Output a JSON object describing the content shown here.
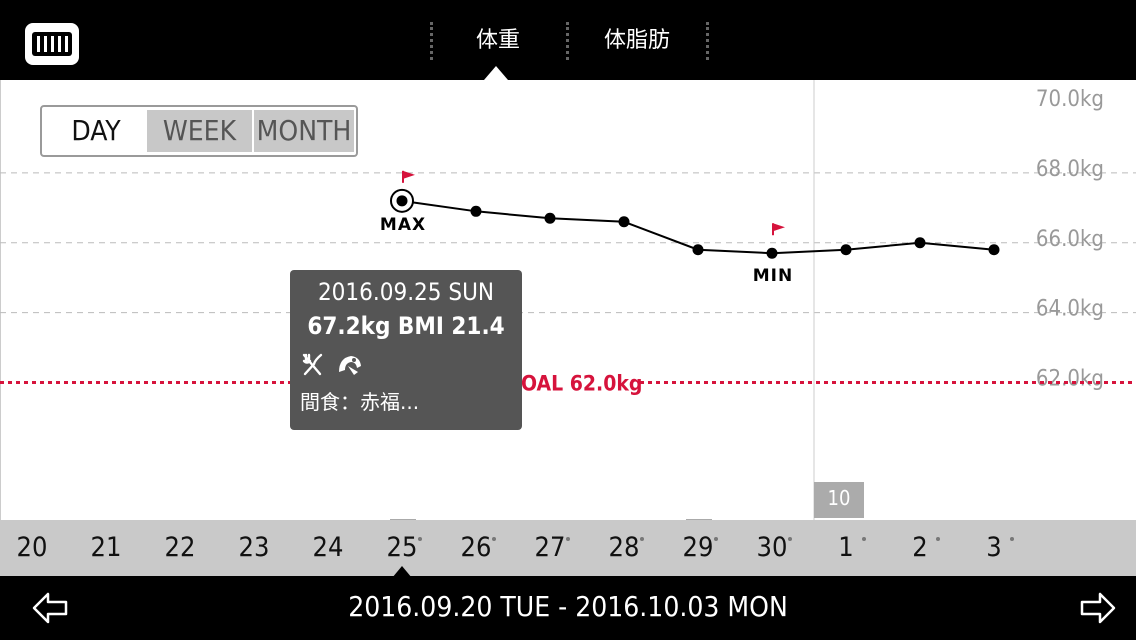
{
  "header": {
    "tabs": [
      {
        "label": "体重",
        "active": true
      },
      {
        "label": "体脂肪",
        "active": false
      }
    ]
  },
  "range_selector": {
    "options": [
      "DAY",
      "WEEK",
      "MONTH"
    ],
    "selected": "DAY"
  },
  "chart_data": {
    "type": "line",
    "x": [
      "2016-09-25",
      "2016-09-26",
      "2016-09-27",
      "2016-09-28",
      "2016-09-29",
      "2016-09-30",
      "2016-10-01",
      "2016-10-02",
      "2016-10-03"
    ],
    "values": [
      67.2,
      66.9,
      66.7,
      66.6,
      65.8,
      65.7,
      65.8,
      66.0,
      65.8
    ],
    "y_tick_labels": [
      "70.0kg",
      "68.0kg",
      "66.0kg",
      "64.0kg",
      "62.0kg"
    ],
    "y_ticks": [
      70,
      68,
      66,
      64,
      62
    ],
    "ylim": [
      61.4,
      70.5
    ],
    "grid": true,
    "goal": {
      "label": "GOAL 62.0kg",
      "value": 62.0,
      "color": "#d6133c"
    },
    "max_label": "MAX",
    "min_label": "MIN",
    "max_index": 0,
    "min_index": 5,
    "flag_color": "#d6133c"
  },
  "tooltip": {
    "date": "2016.09.25 SUN",
    "value_line": "67.2kg  BMI 21.4",
    "icons": [
      "fork-knife-icon",
      "food-bowl-icon"
    ],
    "memo": "間食：赤福..."
  },
  "date_axis": {
    "labels": [
      "20",
      "21",
      "22",
      "23",
      "24",
      "25",
      "26",
      "27",
      "28",
      "29",
      "30",
      "1",
      "2",
      "3"
    ],
    "with_data_dot": [
      false,
      false,
      false,
      false,
      false,
      true,
      true,
      true,
      true,
      true,
      true,
      true,
      true,
      true
    ],
    "selected": "25",
    "month_badge": "10"
  },
  "footer": {
    "range_text": "2016.09.20 TUE - 2016.10.03 MON",
    "prev_icon": "arrow-left-icon",
    "next_icon": "arrow-right-icon"
  }
}
